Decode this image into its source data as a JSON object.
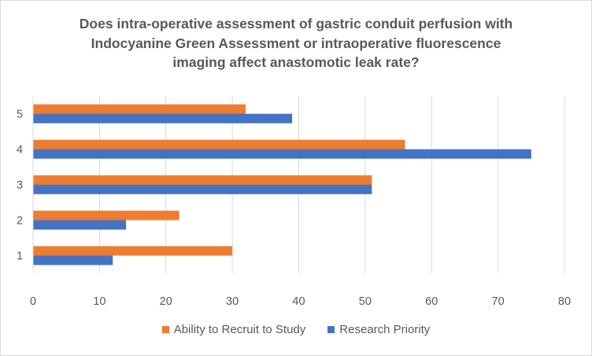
{
  "chart_data": {
    "type": "bar",
    "orientation": "horizontal",
    "title_lines": [
      "Does intra-operative assessment of gastric conduit perfusion with",
      "Indocyanine Green Assessment or intraoperative  fluorescence",
      "imaging affect anastomotic leak rate?"
    ],
    "categories": [
      "1",
      "2",
      "3",
      "4",
      "5"
    ],
    "series": [
      {
        "name": "Ability to Recruit to Study",
        "color": "#ED7D31",
        "values": [
          30,
          22,
          51,
          56,
          32
        ]
      },
      {
        "name": "Research Priority",
        "color": "#4472C4",
        "values": [
          12,
          14,
          51,
          75,
          39
        ]
      }
    ],
    "xlim": [
      0,
      80
    ],
    "xticks": [
      "0",
      "10",
      "20",
      "30",
      "40",
      "50",
      "60",
      "70",
      "80"
    ],
    "grid": "vertical",
    "legend_position": "bottom"
  }
}
